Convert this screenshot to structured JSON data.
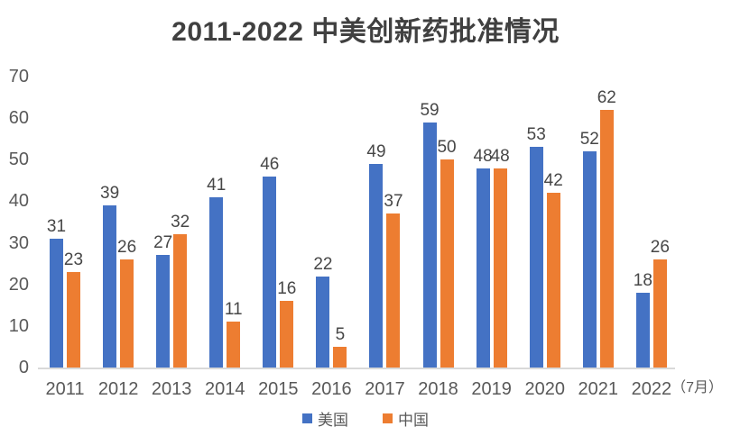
{
  "chart_data": {
    "type": "bar",
    "title": "2011-2022 中美创新药批准情况",
    "categories": [
      "2011",
      "2012",
      "2013",
      "2014",
      "2015",
      "2016",
      "2017",
      "2018",
      "2019",
      "2020",
      "2021",
      "2022"
    ],
    "last_category_suffix": "（7月）",
    "series": [
      {
        "name": "美国",
        "color": "#4472C4",
        "values": [
          31,
          39,
          27,
          41,
          46,
          22,
          49,
          59,
          48,
          53,
          52,
          18
        ]
      },
      {
        "name": "中国",
        "color": "#ED7D31",
        "values": [
          23,
          26,
          32,
          11,
          16,
          5,
          37,
          50,
          48,
          42,
          62,
          26
        ]
      }
    ],
    "ylim": [
      0,
      70
    ],
    "yticks": [
      0,
      10,
      20,
      30,
      40,
      50,
      60,
      70
    ],
    "grid": false,
    "legend_position": "bottom",
    "data_labels": true,
    "colors": {
      "us_bar": "#4472C4",
      "cn_bar": "#ED7D31",
      "axis_line": "#d9d9d9",
      "tick_text": "#595959",
      "title_text": "#404040",
      "label_text": "#474747"
    }
  }
}
